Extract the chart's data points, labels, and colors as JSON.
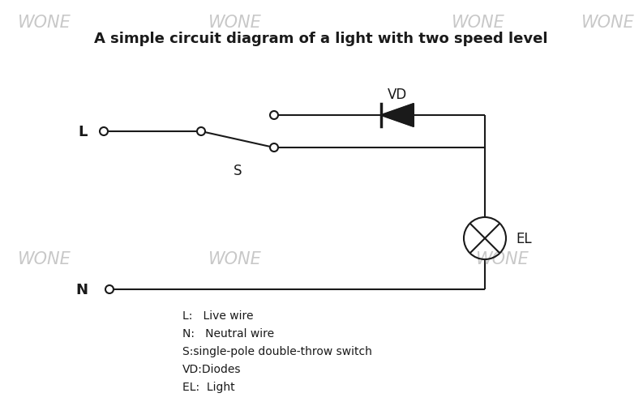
{
  "title": "A simple circuit diagram of a light with two speed level",
  "title_fontsize": 13,
  "title_fontweight": "bold",
  "bg_color": "#ffffff",
  "line_color": "#1a1a1a",
  "line_width": 1.5,
  "watermark_text": "WONE",
  "watermark_color": "#c8c8c8",
  "legend_lines": [
    "L:   Live wire",
    "N:   Neutral wire",
    "S:single-pole double-throw switch",
    "VD:Diodes",
    "EL:  Light"
  ]
}
